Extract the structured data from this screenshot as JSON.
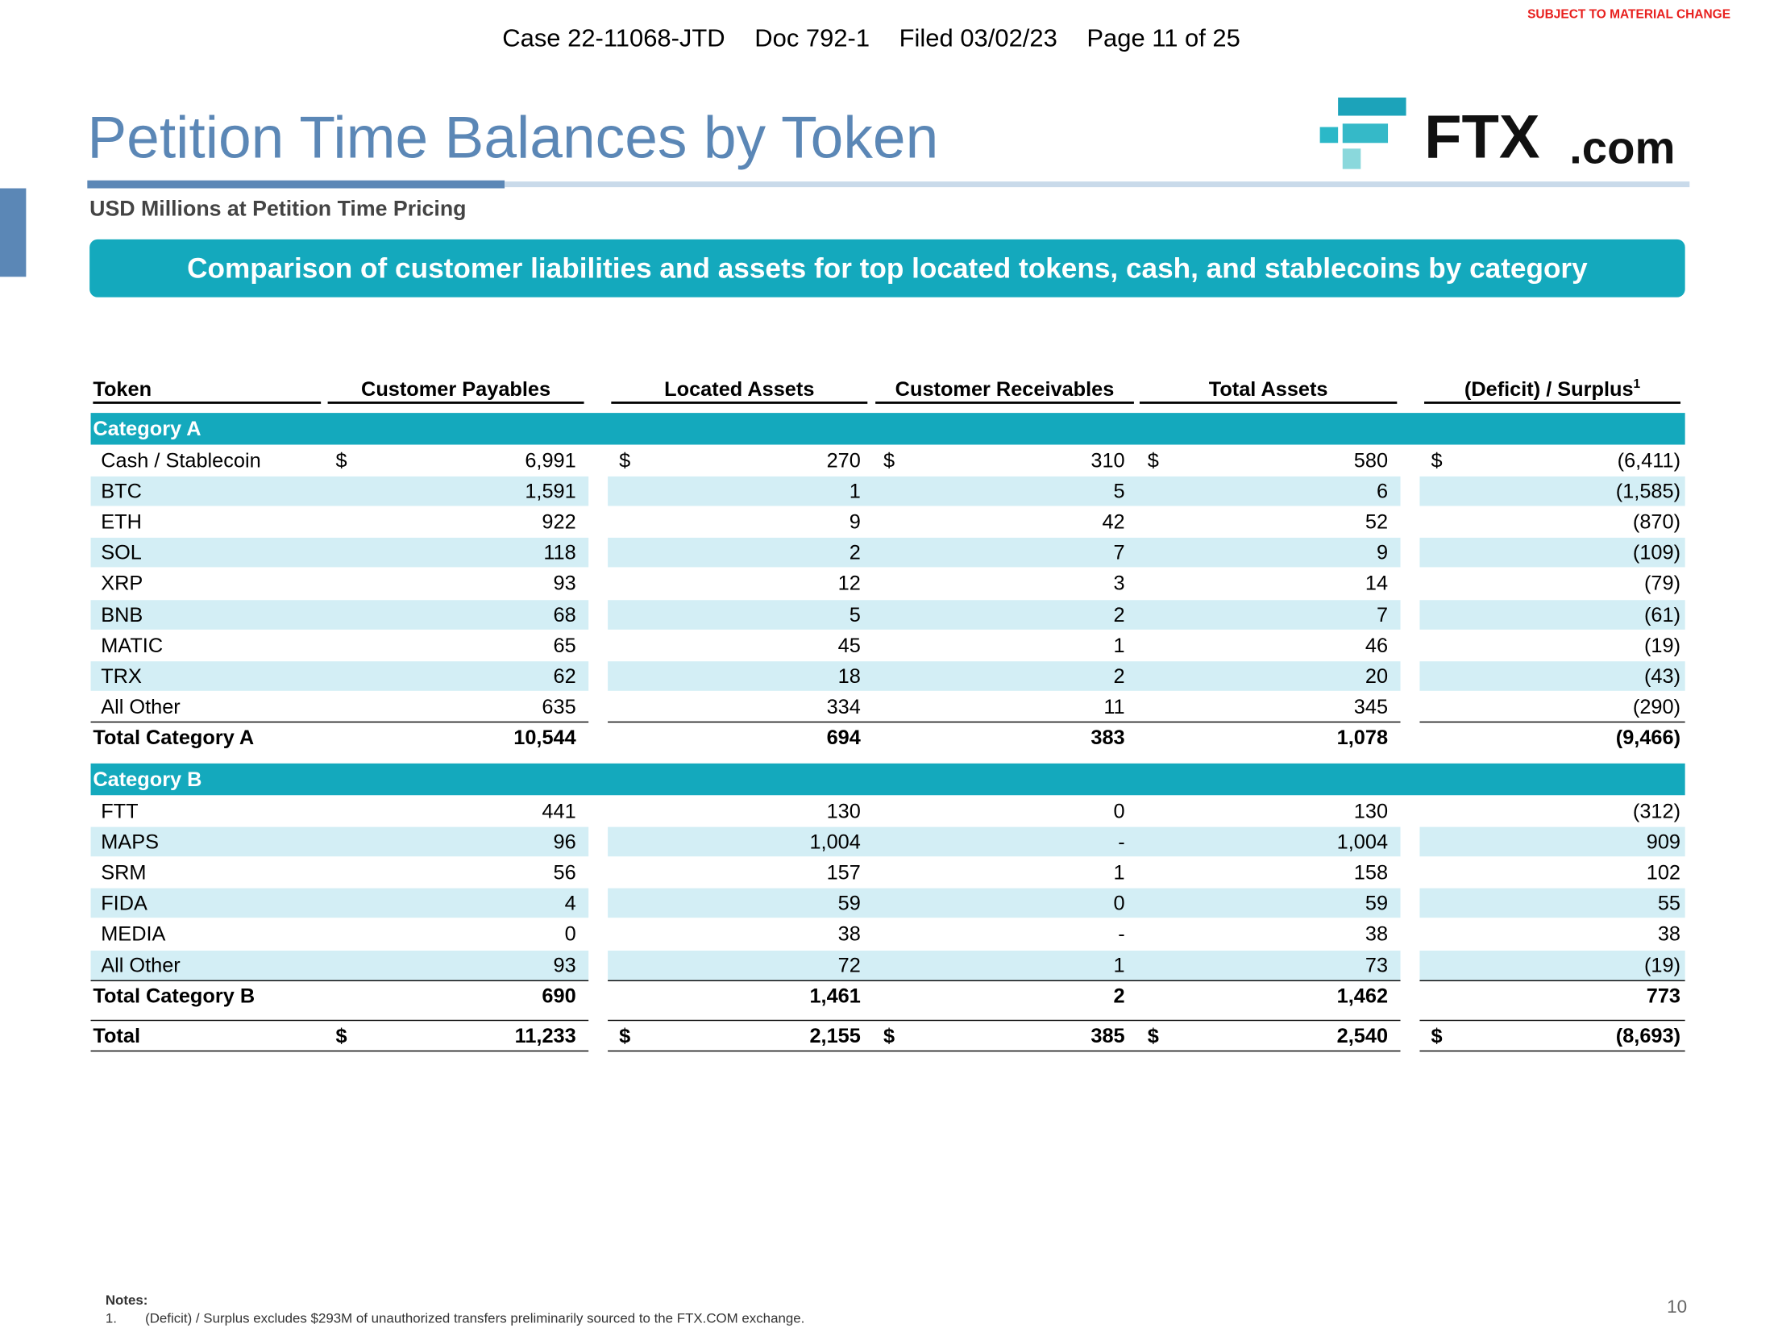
{
  "header": {
    "case_line": [
      "Case 22-11068-JTD",
      "Doc 792-1",
      "Filed 03/02/23",
      "Page 11 of 25"
    ],
    "stamp": "SUBJECT TO MATERIAL CHANGE"
  },
  "logo": {
    "brand": "FTX",
    "suffix": ".com"
  },
  "title": "Petition Time Balances by Token",
  "subtitle": "USD Millions at Petition Time Pricing",
  "banner": "Comparison of customer liabilities and assets for top located tokens, cash, and stablecoins by category",
  "table": {
    "columns": [
      "Token",
      "Customer Payables",
      "Located Assets",
      "Customer Receivables",
      "Total Assets",
      "(Deficit) / Surplus"
    ],
    "footnote_mark": "1",
    "currency": "$",
    "sections": [
      {
        "name": "Category A",
        "rows": [
          {
            "label": "Cash / Stablecoin",
            "values": [
              "6,991",
              "270",
              "310",
              "580",
              "(6,411)"
            ],
            "dollar": true
          },
          {
            "label": "BTC",
            "values": [
              "1,591",
              "1",
              "5",
              "6",
              "(1,585)"
            ]
          },
          {
            "label": "ETH",
            "values": [
              "922",
              "9",
              "42",
              "52",
              "(870)"
            ]
          },
          {
            "label": "SOL",
            "values": [
              "118",
              "2",
              "7",
              "9",
              "(109)"
            ]
          },
          {
            "label": "XRP",
            "values": [
              "93",
              "12",
              "3",
              "14",
              "(79)"
            ]
          },
          {
            "label": "BNB",
            "values": [
              "68",
              "5",
              "2",
              "7",
              "(61)"
            ]
          },
          {
            "label": "MATIC",
            "values": [
              "65",
              "45",
              "1",
              "46",
              "(19)"
            ]
          },
          {
            "label": "TRX",
            "values": [
              "62",
              "18",
              "2",
              "20",
              "(43)"
            ]
          },
          {
            "label": "All Other",
            "values": [
              "635",
              "334",
              "11",
              "345",
              "(290)"
            ]
          }
        ],
        "total": {
          "label": "Total Category A",
          "values": [
            "10,544",
            "694",
            "383",
            "1,078",
            "(9,466)"
          ]
        }
      },
      {
        "name": "Category B",
        "rows": [
          {
            "label": "FTT",
            "values": [
              "441",
              "130",
              "0",
              "130",
              "(312)"
            ]
          },
          {
            "label": "MAPS",
            "values": [
              "96",
              "1,004",
              "-",
              "1,004",
              "909"
            ]
          },
          {
            "label": "SRM",
            "values": [
              "56",
              "157",
              "1",
              "158",
              "102"
            ]
          },
          {
            "label": "FIDA",
            "values": [
              "4",
              "59",
              "0",
              "59",
              "55"
            ]
          },
          {
            "label": "MEDIA",
            "values": [
              "0",
              "38",
              "-",
              "38",
              "38"
            ]
          },
          {
            "label": "All Other",
            "values": [
              "93",
              "72",
              "1",
              "73",
              "(19)"
            ]
          }
        ],
        "total": {
          "label": "Total Category B",
          "values": [
            "690",
            "1,461",
            "2",
            "1,462",
            "773"
          ]
        }
      }
    ],
    "grand_total": {
      "label": "Total",
      "values": [
        "11,233",
        "2,155",
        "385",
        "2,540",
        "(8,693)"
      ],
      "dollar": true
    }
  },
  "notes": {
    "heading": "Notes:",
    "items": [
      {
        "number": "1.",
        "text": "(Deficit) / Surplus excludes $293M of unauthorized transfers preliminarily sourced to the FTX.COM exchange."
      }
    ]
  },
  "page_number": "10"
}
